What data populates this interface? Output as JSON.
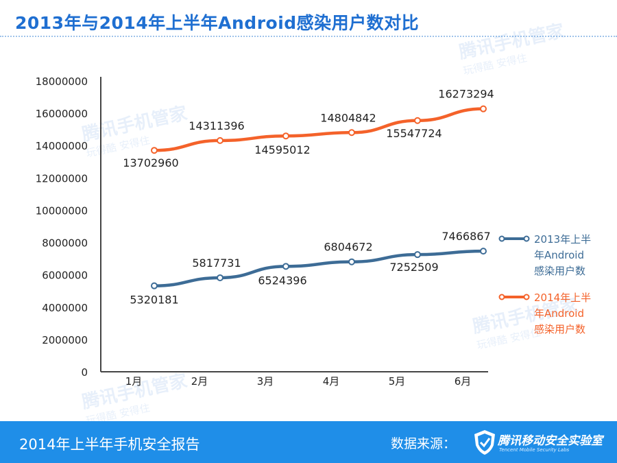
{
  "title": "2013年与2014年上半年Android感染用户数对比",
  "footer": {
    "report": "2014年上半年手机安全报告",
    "source_label": "数据来源：",
    "lab_name": "腾讯移动安全实验室",
    "lab_sub": "Tencent Mobile Security Labs"
  },
  "watermark": {
    "main": "腾讯手机管家",
    "sub": "玩得酷  安得住"
  },
  "colors": {
    "series2013": "#3d6c96",
    "series2014": "#f4622a",
    "title": "#1f6fd1",
    "footer": "#1f8ee8"
  },
  "chart_data": {
    "type": "line",
    "title": "2013年与2014年上半年Android感染用户数对比",
    "xlabel": "",
    "ylabel": "",
    "categories": [
      "1月",
      "2月",
      "3月",
      "4月",
      "5月",
      "6月"
    ],
    "ylim": [
      0,
      18000000
    ],
    "yticks": [
      "0",
      "2000000",
      "4000000",
      "6000000",
      "8000000",
      "10000000",
      "12000000",
      "14000000",
      "16000000",
      "18000000"
    ],
    "grid": false,
    "legend_position": "right",
    "series": [
      {
        "name": "2013年上半年Android感染用户数",
        "legend_lines": [
          "2013年上半",
          "年Android",
          "感染用户数"
        ],
        "values": [
          5320181,
          5817731,
          6524396,
          6804672,
          7252509,
          7466867
        ],
        "labels": [
          "5320181",
          "5817731",
          "6524396",
          "6804672",
          "7252509",
          "7466867"
        ],
        "color": "#3d6c96"
      },
      {
        "name": "2014年上半年Android感染用户数",
        "legend_lines": [
          "2014年上半",
          "年Android",
          "感染用户数"
        ],
        "values": [
          13702960,
          14311396,
          14595012,
          14804842,
          15547724,
          16273294
        ],
        "labels": [
          "13702960",
          "14311396",
          "14595012",
          "14804842",
          "15547724",
          "16273294"
        ],
        "color": "#f4622a"
      }
    ]
  }
}
